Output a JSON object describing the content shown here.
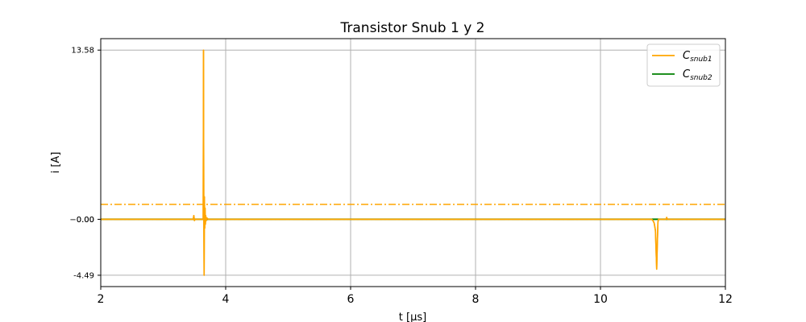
{
  "chart_data": {
    "type": "line",
    "title": "Transistor Snub 1 y 2",
    "xlabel": "t [μs]",
    "ylabel": "i [A]",
    "xlim": [
      2,
      12
    ],
    "ylim": [
      -5.4,
      14.5
    ],
    "x_ticks": [
      2,
      4,
      6,
      8,
      10,
      12
    ],
    "y_ticks": [
      13.58,
      0.0,
      -4.49
    ],
    "y_tick_labels": [
      "13.58",
      "0.00",
      "-4.49"
    ],
    "y_tick_overlay_label": "−0.00",
    "grid": true,
    "legend_position": "top-right",
    "series": [
      {
        "name": "C",
        "name_sub": "snub1",
        "color": "#ffa500",
        "x": [
          2,
          3.48,
          3.49,
          3.5,
          3.51,
          3.62,
          3.64,
          3.645,
          3.65,
          3.655,
          3.66,
          3.665,
          3.67,
          3.675,
          3.68,
          3.69,
          3.7,
          3.72,
          3.75,
          10.82,
          10.84,
          10.86,
          10.88,
          10.9,
          10.91,
          10.92,
          10.93,
          10.95,
          11.05,
          11.06,
          11.07,
          12
        ],
        "y": [
          0,
          0,
          0.3,
          -0.1,
          0,
          0,
          0,
          13.58,
          0.5,
          -4.49,
          1.8,
          -0.7,
          0.9,
          -0.4,
          0.3,
          -0.1,
          0.1,
          0,
          0,
          0,
          -0.1,
          -0.3,
          -0.9,
          -4.0,
          -2.0,
          -0.2,
          0,
          0,
          0,
          0.15,
          0,
          0
        ]
      },
      {
        "name": "C",
        "name_sub": "snub2",
        "color": "#008000",
        "x": [
          2,
          12
        ],
        "y": [
          0,
          0
        ]
      }
    ],
    "reference_lines": [
      {
        "y": 1.2,
        "color": "#ffa500",
        "style": "dashdot"
      },
      {
        "y": 0.0,
        "color": "#008000",
        "style": "dashdot"
      }
    ]
  }
}
